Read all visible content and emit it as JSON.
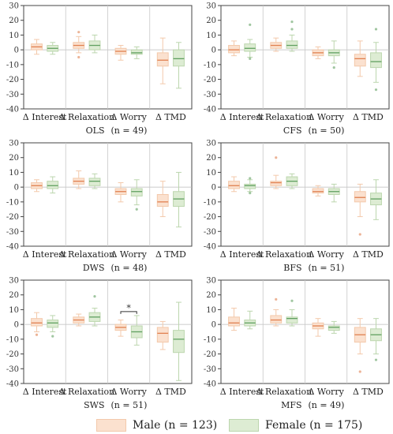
{
  "colors": {
    "male_fill": "#fbe1cf",
    "male_stroke": "#f3c9ab",
    "male_median": "#e08050",
    "female_fill": "#ddecd3",
    "female_stroke": "#bcd6ae",
    "female_median": "#60a060"
  },
  "legend": {
    "male": "Male (n = 123)",
    "female": "Female (n = 175)"
  },
  "chart_data": [
    {
      "type": "boxplot",
      "label": "OLS",
      "n_label": "(n = 49)",
      "categories": [
        "Δ Interest",
        "Δ Relaxation",
        "Δ Worry",
        "Δ TMD"
      ],
      "ylim": [
        -40,
        30
      ],
      "yticks": [
        -40,
        -30,
        -20,
        -10,
        0,
        10,
        20,
        30
      ],
      "grid": true,
      "series": [
        {
          "name": "Male",
          "boxes": [
            {
              "min": -3,
              "q1": 0,
              "median": 2,
              "q3": 4,
              "max": 7,
              "outliers": []
            },
            {
              "min": -2,
              "q1": 1,
              "median": 3,
              "q3": 5,
              "max": 9,
              "outliers": [
                12,
                -5
              ]
            },
            {
              "min": -7,
              "q1": -3,
              "median": -1,
              "q3": 1,
              "max": 3,
              "outliers": []
            },
            {
              "min": -23,
              "q1": -11,
              "median": -7,
              "q3": -2,
              "max": 8,
              "outliers": []
            }
          ]
        },
        {
          "name": "Female",
          "boxes": [
            {
              "min": -3,
              "q1": -1,
              "median": 1,
              "q3": 3,
              "max": 5,
              "outliers": []
            },
            {
              "min": -2,
              "q1": 0,
              "median": 3,
              "q3": 6,
              "max": 10,
              "outliers": []
            },
            {
              "min": -6,
              "q1": -3,
              "median": -2,
              "q3": 0,
              "max": 2,
              "outliers": []
            },
            {
              "min": -26,
              "q1": -11,
              "median": -6,
              "q3": 0,
              "max": 5,
              "outliers": []
            }
          ]
        }
      ]
    },
    {
      "type": "boxplot",
      "label": "CFS",
      "n_label": "(n = 50)",
      "categories": [
        "Δ Interest",
        "Δ Relaxation",
        "Δ Worry",
        "Δ TMD"
      ],
      "ylim": [
        -40,
        30
      ],
      "yticks": [
        -40,
        -30,
        -20,
        -10,
        0,
        10,
        20,
        30
      ],
      "grid": true,
      "series": [
        {
          "name": "Male",
          "boxes": [
            {
              "min": -4,
              "q1": -2,
              "median": 0,
              "q3": 3,
              "max": 6,
              "outliers": []
            },
            {
              "min": -1,
              "q1": 1,
              "median": 3,
              "q3": 5,
              "max": 8,
              "outliers": []
            },
            {
              "min": -6,
              "q1": -4,
              "median": -2,
              "q3": 0,
              "max": 2,
              "outliers": []
            },
            {
              "min": -18,
              "q1": -11,
              "median": -6,
              "q3": -3,
              "max": 6,
              "outliers": []
            }
          ]
        },
        {
          "name": "Female",
          "boxes": [
            {
              "min": -5,
              "q1": -1,
              "median": 1,
              "q3": 4,
              "max": 7,
              "outliers": [
                17,
                -6
              ]
            },
            {
              "min": -1,
              "q1": 1,
              "median": 3,
              "q3": 6,
              "max": 10,
              "outliers": [
                19,
                14
              ]
            },
            {
              "min": -9,
              "q1": -4,
              "median": -2,
              "q3": 0,
              "max": 6,
              "outliers": [
                -12
              ]
            },
            {
              "min": -22,
              "q1": -12,
              "median": -8,
              "q3": -2,
              "max": 5,
              "outliers": [
                14,
                -27
              ]
            }
          ]
        }
      ]
    },
    {
      "type": "boxplot",
      "label": "DWS",
      "n_label": "(n = 48)",
      "categories": [
        "Δ Interest",
        "Δ Relaxation",
        "Δ Worry",
        "Δ TMD"
      ],
      "ylim": [
        -40,
        30
      ],
      "yticks": [
        -40,
        -30,
        -20,
        -10,
        0,
        10,
        20,
        30
      ],
      "grid": true,
      "series": [
        {
          "name": "Male",
          "boxes": [
            {
              "min": -3,
              "q1": -1,
              "median": 1,
              "q3": 3,
              "max": 5,
              "outliers": []
            },
            {
              "min": -1,
              "q1": 2,
              "median": 4,
              "q3": 6,
              "max": 11,
              "outliers": []
            },
            {
              "min": -10,
              "q1": -5,
              "median": -3,
              "q3": -1,
              "max": 3,
              "outliers": []
            },
            {
              "min": -20,
              "q1": -13,
              "median": -10,
              "q3": -5,
              "max": 4,
              "outliers": []
            }
          ]
        },
        {
          "name": "Female",
          "boxes": [
            {
              "min": -4,
              "q1": -1,
              "median": 1,
              "q3": 4,
              "max": 7,
              "outliers": []
            },
            {
              "min": -1,
              "q1": 1,
              "median": 4,
              "q3": 6,
              "max": 9,
              "outliers": []
            },
            {
              "min": -12,
              "q1": -6,
              "median": -3,
              "q3": -1,
              "max": 5,
              "outliers": [
                -15
              ]
            },
            {
              "min": -27,
              "q1": -13,
              "median": -8,
              "q3": -3,
              "max": 10,
              "outliers": []
            }
          ]
        }
      ]
    },
    {
      "type": "boxplot",
      "label": "BFS",
      "n_label": "(n = 51)",
      "categories": [
        "Δ Interest",
        "Δ Relaxation",
        "Δ Worry",
        "Δ TMD"
      ],
      "ylim": [
        -40,
        30
      ],
      "yticks": [
        -40,
        -30,
        -20,
        -10,
        0,
        10,
        20,
        30
      ],
      "grid": true,
      "series": [
        {
          "name": "Male",
          "boxes": [
            {
              "min": -3,
              "q1": -1,
              "median": 1,
              "q3": 4,
              "max": 7,
              "outliers": []
            },
            {
              "min": -1,
              "q1": 1,
              "median": 3,
              "q3": 4,
              "max": 8,
              "outliers": [
                20
              ]
            },
            {
              "min": -6,
              "q1": -4,
              "median": -3,
              "q3": -1,
              "max": 1,
              "outliers": []
            },
            {
              "min": -20,
              "q1": -10,
              "median": -7,
              "q3": -3,
              "max": 2,
              "outliers": [
                -32
              ]
            }
          ]
        },
        {
          "name": "Female",
          "boxes": [
            {
              "min": -3,
              "q1": -1,
              "median": 1,
              "q3": 2,
              "max": 5,
              "outliers": [
                -4,
                6
              ]
            },
            {
              "min": -1,
              "q1": 1,
              "median": 4,
              "q3": 7,
              "max": 9,
              "outliers": []
            },
            {
              "min": -10,
              "q1": -5,
              "median": -3,
              "q3": -1,
              "max": 2,
              "outliers": []
            },
            {
              "min": -22,
              "q1": -12,
              "median": -8,
              "q3": -4,
              "max": 5,
              "outliers": []
            }
          ]
        }
      ]
    },
    {
      "type": "boxplot",
      "label": "SWS",
      "n_label": "(n = 51)",
      "categories": [
        "Δ Interest",
        "Δ Relaxation",
        "Δ Worry",
        "Δ TMD"
      ],
      "ylim": [
        -40,
        30
      ],
      "yticks": [
        -40,
        -30,
        -20,
        -10,
        0,
        10,
        20,
        30
      ],
      "grid": true,
      "annotation": {
        "text": "*",
        "between": "Δ Worry"
      },
      "series": [
        {
          "name": "Male",
          "boxes": [
            {
              "min": -5,
              "q1": -1,
              "median": 1,
              "q3": 4,
              "max": 8,
              "outliers": [
                -7
              ]
            },
            {
              "min": -1,
              "q1": 1,
              "median": 3,
              "q3": 5,
              "max": 7,
              "outliers": []
            },
            {
              "min": -8,
              "q1": -4,
              "median": -2,
              "q3": 0,
              "max": 3,
              "outliers": []
            },
            {
              "min": -17,
              "q1": -12,
              "median": -6,
              "q3": -2,
              "max": 2,
              "outliers": []
            }
          ]
        },
        {
          "name": "Female",
          "boxes": [
            {
              "min": -5,
              "q1": -2,
              "median": 1,
              "q3": 3,
              "max": 6,
              "outliers": [
                -8
              ]
            },
            {
              "min": -1,
              "q1": 2,
              "median": 5,
              "q3": 8,
              "max": 11,
              "outliers": [
                19
              ]
            },
            {
              "min": -14,
              "q1": -9,
              "median": -5,
              "q3": -1,
              "max": 6,
              "outliers": []
            },
            {
              "min": -38,
              "q1": -19,
              "median": -10,
              "q3": -4,
              "max": 15,
              "outliers": []
            }
          ]
        }
      ]
    },
    {
      "type": "boxplot",
      "label": "MFS",
      "n_label": "(n = 49)",
      "categories": [
        "Δ Interest",
        "Δ Relaxation",
        "Δ Worry",
        "Δ TMD"
      ],
      "ylim": [
        -40,
        30
      ],
      "yticks": [
        -40,
        -30,
        -20,
        -10,
        0,
        10,
        20,
        30
      ],
      "grid": true,
      "series": [
        {
          "name": "Male",
          "boxes": [
            {
              "min": -4,
              "q1": -1,
              "median": 1,
              "q3": 5,
              "max": 11,
              "outliers": []
            },
            {
              "min": -1,
              "q1": 1,
              "median": 3,
              "q3": 6,
              "max": 10,
              "outliers": [
                17
              ]
            },
            {
              "min": -8,
              "q1": -3,
              "median": -1,
              "q3": 1,
              "max": 4,
              "outliers": []
            },
            {
              "min": -20,
              "q1": -12,
              "median": -7,
              "q3": -2,
              "max": 4,
              "outliers": [
                -32
              ]
            }
          ]
        },
        {
          "name": "Female",
          "boxes": [
            {
              "min": -3,
              "q1": -1,
              "median": 1,
              "q3": 3,
              "max": 9,
              "outliers": []
            },
            {
              "min": -1,
              "q1": 1,
              "median": 4,
              "q3": 5,
              "max": 10,
              "outliers": [
                16
              ]
            },
            {
              "min": -6,
              "q1": -4,
              "median": -2,
              "q3": -1,
              "max": 2,
              "outliers": []
            },
            {
              "min": -20,
              "q1": -11,
              "median": -7,
              "q3": -3,
              "max": 4,
              "outliers": [
                -24
              ]
            }
          ]
        }
      ]
    }
  ]
}
